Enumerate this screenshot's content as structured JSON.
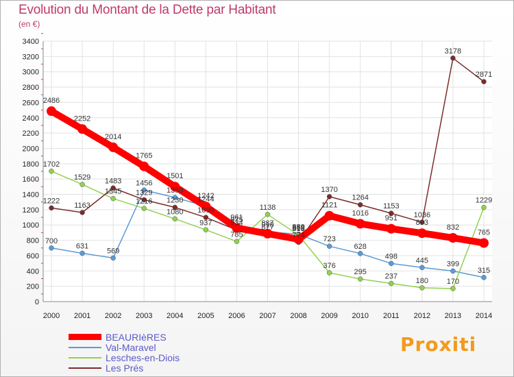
{
  "page": {
    "title": "Evolution du Montant de la Dette par Habitant",
    "subtitle": "(en €)",
    "brand": "Proxiti"
  },
  "chart_data": {
    "type": "line",
    "title": "Evolution du Montant de la Dette par Habitant",
    "ylabel": "(en €)",
    "x": [
      "2000",
      "2001",
      "2002",
      "2003",
      "2004",
      "2005",
      "2006",
      "2007",
      "2008",
      "2009",
      "2010",
      "2011",
      "2012",
      "2013",
      "2014"
    ],
    "ylim": [
      0,
      3400
    ],
    "yticks": [
      0,
      200,
      400,
      600,
      800,
      1000,
      1200,
      1400,
      1600,
      1800,
      2000,
      2200,
      2400,
      2600,
      2800,
      3000,
      3200,
      3400
    ],
    "grid": true,
    "legend_position": "bottom-left",
    "series": [
      {
        "name": "BEAURIèRES",
        "color": "#ff0000",
        "thick": true,
        "values": [
          2486,
          2252,
          2014,
          1765,
          1501,
          1242,
          961,
          887,
          813,
          1121,
          1016,
          951,
          893,
          832,
          765
        ]
      },
      {
        "name": "Val-Maravel",
        "color": "#5b9bd5",
        "thick": false,
        "values": [
          700,
          631,
          569,
          1456,
          1359,
          1244,
          975,
          910,
          880,
          723,
          628,
          498,
          445,
          399,
          315
        ]
      },
      {
        "name": "Lesches-en-Diois",
        "color": "#92d050",
        "thick": false,
        "values": [
          1702,
          1529,
          1345,
          1216,
          1080,
          937,
          785,
          1138,
          868,
          376,
          295,
          237,
          180,
          170,
          1229
        ]
      },
      {
        "name": "Les Prés",
        "color": "#7b2c2c",
        "thick": false,
        "values": [
          1222,
          1163,
          1483,
          1329,
          1230,
          1099,
          934,
          877,
          774,
          1370,
          1264,
          1153,
          1036,
          3178,
          2871
        ]
      }
    ]
  }
}
